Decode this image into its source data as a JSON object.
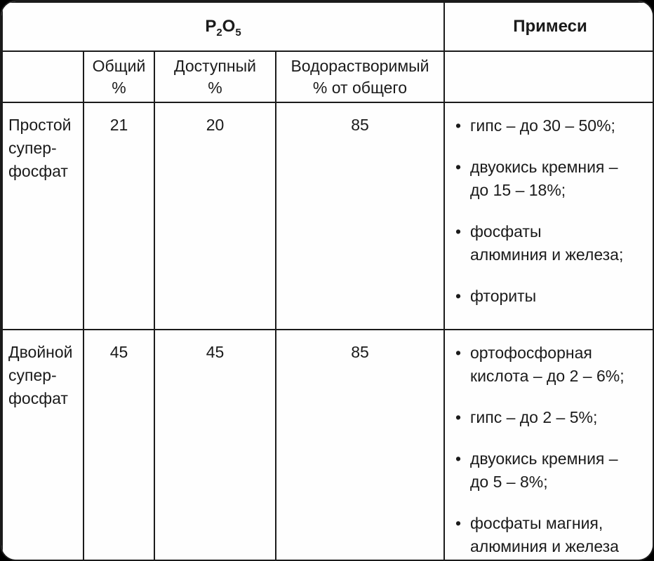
{
  "colors": {
    "background": "#000000",
    "sheet": "#fefefe",
    "border": "#1b1b1b",
    "text": "#1b1b1b"
  },
  "table": {
    "header_row1": {
      "p2o5": {
        "p": "P",
        "sub2": "2",
        "o": "O",
        "sub5": "5"
      },
      "impurities": "Примеси"
    },
    "header_row2": {
      "total": "Общий\n%",
      "available": "Доступный\n%",
      "water_soluble": "Водорастворимый\n% от общего"
    },
    "rows": [
      {
        "name": "Простой\nсупер-\nфосфат",
        "total": "21",
        "available": "20",
        "water_soluble": "85",
        "impurities": [
          "гипс – до 30 – 50%;",
          "двуокись кремния –\nдо 15 – 18%;",
          "фосфаты\nалюминия и железа;",
          "фториты"
        ]
      },
      {
        "name": "Двойной\nсупер-\nфосфат",
        "total": "45",
        "available": "45",
        "water_soluble": "85",
        "impurities": [
          "ортофосфорная\nкислота – до 2 – 6%;",
          "гипс – до 2 – 5%;",
          "двуокись кремния –\nдо 5 – 8%;",
          "фосфаты магния,\nалюминия и железа"
        ]
      }
    ]
  }
}
